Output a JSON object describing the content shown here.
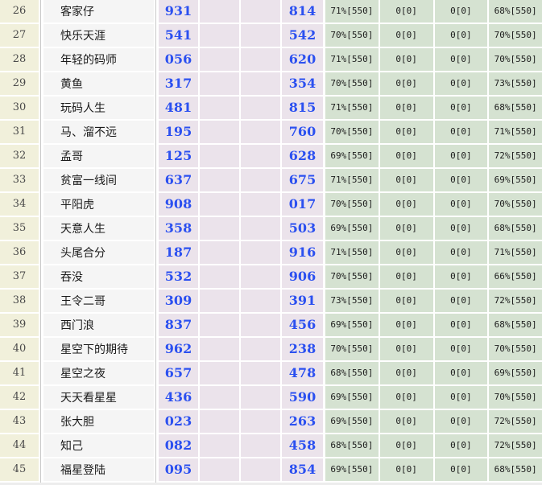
{
  "colors": {
    "row_index_bg": "#f1f0db",
    "name_bg": "#f5f5f5",
    "pick_bg": "#ebe3eb",
    "stat_bg": "#d5e2d1",
    "number_blue": "#2b50f0",
    "separator_line": "#c9c9c9",
    "page_bg": "#ededed"
  },
  "table": {
    "rows": [
      {
        "no": "26",
        "name": "客家仔",
        "pick1": "931",
        "pick2": "814",
        "stat1": "71%[550]",
        "stat2": "0[0]",
        "stat3": "0[0]",
        "stat4": "68%[550]"
      },
      {
        "no": "27",
        "name": "快乐天涯",
        "pick1": "541",
        "pick2": "542",
        "stat1": "70%[550]",
        "stat2": "0[0]",
        "stat3": "0[0]",
        "stat4": "70%[550]"
      },
      {
        "no": "28",
        "name": "年轻的码师",
        "pick1": "056",
        "pick2": "620",
        "stat1": "71%[550]",
        "stat2": "0[0]",
        "stat3": "0[0]",
        "stat4": "70%[550]"
      },
      {
        "no": "29",
        "name": "黄鱼",
        "pick1": "317",
        "pick2": "354",
        "stat1": "70%[550]",
        "stat2": "0[0]",
        "stat3": "0[0]",
        "stat4": "73%[550]"
      },
      {
        "no": "30",
        "name": "玩码人生",
        "pick1": "481",
        "pick2": "815",
        "stat1": "71%[550]",
        "stat2": "0[0]",
        "stat3": "0[0]",
        "stat4": "68%[550]"
      },
      {
        "no": "31",
        "name": "马、溜不远",
        "pick1": "195",
        "pick2": "760",
        "stat1": "70%[550]",
        "stat2": "0[0]",
        "stat3": "0[0]",
        "stat4": "71%[550]"
      },
      {
        "no": "32",
        "name": "孟哥",
        "pick1": "125",
        "pick2": "628",
        "stat1": "69%[550]",
        "stat2": "0[0]",
        "stat3": "0[0]",
        "stat4": "72%[550]"
      },
      {
        "no": "33",
        "name": "贫富一线间",
        "pick1": "637",
        "pick2": "675",
        "stat1": "71%[550]",
        "stat2": "0[0]",
        "stat3": "0[0]",
        "stat4": "69%[550]"
      },
      {
        "no": "34",
        "name": "平阳虎",
        "pick1": "908",
        "pick2": "017",
        "stat1": "70%[550]",
        "stat2": "0[0]",
        "stat3": "0[0]",
        "stat4": "70%[550]"
      },
      {
        "no": "35",
        "name": "天意人生",
        "pick1": "358",
        "pick2": "503",
        "stat1": "69%[550]",
        "stat2": "0[0]",
        "stat3": "0[0]",
        "stat4": "68%[550]"
      },
      {
        "no": "36",
        "name": "头尾合分",
        "pick1": "187",
        "pick2": "916",
        "stat1": "71%[550]",
        "stat2": "0[0]",
        "stat3": "0[0]",
        "stat4": "71%[550]"
      },
      {
        "no": "37",
        "name": "吞没",
        "pick1": "532",
        "pick2": "906",
        "stat1": "70%[550]",
        "stat2": "0[0]",
        "stat3": "0[0]",
        "stat4": "66%[550]"
      },
      {
        "no": "38",
        "name": "王令二哥",
        "pick1": "309",
        "pick2": "391",
        "stat1": "73%[550]",
        "stat2": "0[0]",
        "stat3": "0[0]",
        "stat4": "72%[550]"
      },
      {
        "no": "39",
        "name": "西门浪",
        "pick1": "837",
        "pick2": "456",
        "stat1": "69%[550]",
        "stat2": "0[0]",
        "stat3": "0[0]",
        "stat4": "68%[550]"
      },
      {
        "no": "40",
        "name": "星空下的期待",
        "pick1": "962",
        "pick2": "238",
        "stat1": "70%[550]",
        "stat2": "0[0]",
        "stat3": "0[0]",
        "stat4": "70%[550]"
      },
      {
        "no": "41",
        "name": "星空之夜",
        "pick1": "657",
        "pick2": "478",
        "stat1": "68%[550]",
        "stat2": "0[0]",
        "stat3": "0[0]",
        "stat4": "69%[550]"
      },
      {
        "no": "42",
        "name": "天天看星星",
        "pick1": "436",
        "pick2": "590",
        "stat1": "69%[550]",
        "stat2": "0[0]",
        "stat3": "0[0]",
        "stat4": "70%[550]"
      },
      {
        "no": "43",
        "name": "张大胆",
        "pick1": "023",
        "pick2": "263",
        "stat1": "69%[550]",
        "stat2": "0[0]",
        "stat3": "0[0]",
        "stat4": "72%[550]"
      },
      {
        "no": "44",
        "name": "知己",
        "pick1": "082",
        "pick2": "458",
        "stat1": "68%[550]",
        "stat2": "0[0]",
        "stat3": "0[0]",
        "stat4": "72%[550]"
      },
      {
        "no": "45",
        "name": "福星登陆",
        "pick1": "095",
        "pick2": "854",
        "stat1": "69%[550]",
        "stat2": "0[0]",
        "stat3": "0[0]",
        "stat4": "68%[550]"
      }
    ]
  }
}
